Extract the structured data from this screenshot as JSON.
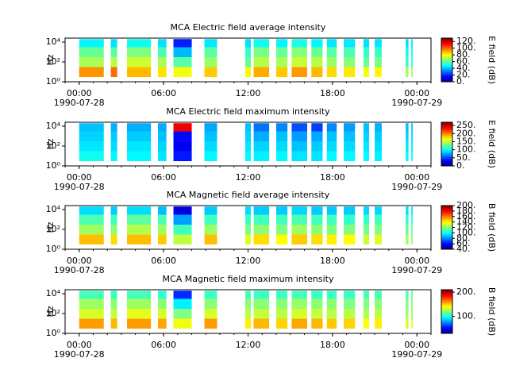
{
  "chart_data": [
    {
      "type": "spectrogram",
      "title": "MCA  Electric field average intensity",
      "ylabel": "Hz",
      "colorbar_label": "E field (dB)",
      "colormap": "jet",
      "yscale": "log",
      "xlim": [
        -1,
        25
      ],
      "xticks": [
        {
          "value": 0,
          "label": "00:00"
        },
        {
          "value": 6,
          "label": "06:00"
        },
        {
          "value": 12,
          "label": "12:00"
        },
        {
          "value": 18,
          "label": "18:00"
        },
        {
          "value": 24,
          "label": "00:00"
        }
      ],
      "xtick_dates": [
        {
          "value": 0,
          "label": "1990-07-28"
        },
        {
          "value": 24,
          "label": "1990-07-29"
        }
      ],
      "ylim": [
        1,
        25000
      ],
      "yticks": [
        {
          "value": 1,
          "label": "10⁰"
        },
        {
          "value": 100,
          "label": "10²"
        },
        {
          "value": 10000,
          "label": "10⁴"
        }
      ],
      "zlim": [
        0,
        130
      ],
      "zticks": [
        {
          "value": 0,
          "label": "0."
        },
        {
          "value": 20,
          "label": "20."
        },
        {
          "value": 40,
          "label": "40."
        },
        {
          "value": 60,
          "label": "60."
        },
        {
          "value": 80,
          "label": "80."
        },
        {
          "value": 100,
          "label": "100."
        },
        {
          "value": 120,
          "label": "120."
        }
      ],
      "y_edges": [
        3,
        30,
        300,
        3000,
        20000
      ],
      "x": [
        [
          0,
          1.75
        ],
        [
          2.25,
          2.7
        ],
        [
          3.4,
          5.1
        ],
        [
          5.6,
          6.2
        ],
        [
          6.7,
          8.0
        ],
        [
          8.9,
          9.8
        ],
        [
          11.8,
          12.2
        ],
        [
          12.4,
          13.5
        ],
        [
          14.0,
          14.8
        ],
        [
          15.1,
          16.2
        ],
        [
          16.5,
          17.3
        ],
        [
          17.6,
          18.3
        ],
        [
          18.8,
          19.6
        ],
        [
          20.2,
          20.6
        ],
        [
          21.0,
          21.5
        ],
        [
          23.2,
          23.4
        ],
        [
          23.6,
          23.7
        ]
      ],
      "values": [
        [
          95,
          70,
          62,
          48
        ],
        [
          100,
          72,
          60,
          45
        ],
        [
          90,
          75,
          65,
          50
        ],
        [
          85,
          70,
          58,
          45
        ],
        [
          80,
          60,
          40,
          20
        ],
        [
          88,
          68,
          60,
          46
        ],
        [
          82,
          62,
          55,
          45
        ],
        [
          92,
          72,
          64,
          50
        ],
        [
          88,
          70,
          62,
          48
        ],
        [
          94,
          74,
          66,
          52
        ],
        [
          90,
          72,
          62,
          48
        ],
        [
          86,
          68,
          60,
          46
        ],
        [
          84,
          66,
          58,
          46
        ],
        [
          80,
          62,
          55,
          45
        ],
        [
          82,
          64,
          56,
          46
        ],
        [
          70,
          55,
          50,
          45
        ],
        [
          68,
          55,
          50,
          45
        ]
      ]
    },
    {
      "type": "spectrogram",
      "title": "MCA  Electric field maximum intensity",
      "ylabel": "Hz",
      "colorbar_label": "E field (dB)",
      "colormap": "jet",
      "yscale": "log",
      "xlim": [
        -1,
        25
      ],
      "xticks": [
        {
          "value": 0,
          "label": "00:00"
        },
        {
          "value": 6,
          "label": "06:00"
        },
        {
          "value": 12,
          "label": "12:00"
        },
        {
          "value": 18,
          "label": "18:00"
        },
        {
          "value": 24,
          "label": "00:00"
        }
      ],
      "xtick_dates": [
        {
          "value": 0,
          "label": "1990-07-28"
        },
        {
          "value": 24,
          "label": "1990-07-29"
        }
      ],
      "ylim": [
        1,
        25000
      ],
      "yticks": [
        {
          "value": 1,
          "label": "10⁰"
        },
        {
          "value": 100,
          "label": "10²"
        },
        {
          "value": 10000,
          "label": "10⁴"
        }
      ],
      "zlim": [
        0,
        270
      ],
      "zticks": [
        {
          "value": 0,
          "label": "0."
        },
        {
          "value": 50,
          "label": "50."
        },
        {
          "value": 100,
          "label": "100."
        },
        {
          "value": 150,
          "label": "150."
        },
        {
          "value": 200,
          "label": "200."
        },
        {
          "value": 250,
          "label": "250."
        }
      ],
      "y_edges": [
        3,
        30,
        300,
        3000,
        20000
      ],
      "x": [
        [
          0,
          1.75
        ],
        [
          2.25,
          2.7
        ],
        [
          3.4,
          5.1
        ],
        [
          5.6,
          6.2
        ],
        [
          6.7,
          8.0
        ],
        [
          8.9,
          9.8
        ],
        [
          11.8,
          12.2
        ],
        [
          12.4,
          13.5
        ],
        [
          14.0,
          14.8
        ],
        [
          15.1,
          16.2
        ],
        [
          16.5,
          17.3
        ],
        [
          17.6,
          18.3
        ],
        [
          18.8,
          19.6
        ],
        [
          20.2,
          20.6
        ],
        [
          21.0,
          21.5
        ],
        [
          23.2,
          23.4
        ],
        [
          23.6,
          23.7
        ]
      ],
      "values": [
        [
          105,
          95,
          90,
          85
        ],
        [
          100,
          92,
          88,
          80
        ],
        [
          100,
          95,
          88,
          80
        ],
        [
          95,
          90,
          85,
          80
        ],
        [
          40,
          30,
          35,
          240
        ],
        [
          100,
          92,
          85,
          78
        ],
        [
          100,
          95,
          90,
          85
        ],
        [
          98,
          90,
          80,
          65
        ],
        [
          100,
          92,
          85,
          70
        ],
        [
          95,
          85,
          75,
          55
        ],
        [
          95,
          88,
          78,
          50
        ],
        [
          100,
          92,
          85,
          70
        ],
        [
          100,
          92,
          85,
          75
        ],
        [
          100,
          95,
          90,
          85
        ],
        [
          98,
          92,
          88,
          80
        ],
        [
          100,
          95,
          90,
          85
        ],
        [
          100,
          95,
          90,
          85
        ]
      ]
    },
    {
      "type": "spectrogram",
      "title": "MCA  Magnetic field average intensity",
      "ylabel": "Hz",
      "colorbar_label": "B field (dB)",
      "colormap": "jet",
      "yscale": "log",
      "xlim": [
        -1,
        25
      ],
      "xticks": [
        {
          "value": 0,
          "label": "00:00"
        },
        {
          "value": 6,
          "label": "06:00"
        },
        {
          "value": 12,
          "label": "12:00"
        },
        {
          "value": 18,
          "label": "18:00"
        },
        {
          "value": 24,
          "label": "00:00"
        }
      ],
      "xtick_dates": [
        {
          "value": 0,
          "label": "1990-07-28"
        },
        {
          "value": 24,
          "label": "1990-07-29"
        }
      ],
      "ylim": [
        1,
        25000
      ],
      "yticks": [
        {
          "value": 1,
          "label": "10⁰"
        },
        {
          "value": 100,
          "label": "10²"
        },
        {
          "value": 10000,
          "label": "10⁴"
        }
      ],
      "zlim": [
        40,
        200
      ],
      "zticks": [
        {
          "value": 40,
          "label": "40."
        },
        {
          "value": 60,
          "label": "60."
        },
        {
          "value": 80,
          "label": "80."
        },
        {
          "value": 100,
          "label": "100."
        },
        {
          "value": 120,
          "label": "120."
        },
        {
          "value": 140,
          "label": "140."
        },
        {
          "value": 160,
          "label": "160."
        },
        {
          "value": 180,
          "label": "180."
        },
        {
          "value": 200,
          "label": "200."
        }
      ],
      "y_edges": [
        3,
        30,
        300,
        3000,
        20000
      ],
      "x": [
        [
          0,
          1.75
        ],
        [
          2.25,
          2.7
        ],
        [
          3.4,
          5.1
        ],
        [
          5.6,
          6.2
        ],
        [
          6.7,
          8.0
        ],
        [
          8.9,
          9.8
        ],
        [
          11.8,
          12.2
        ],
        [
          12.4,
          13.5
        ],
        [
          14.0,
          14.8
        ],
        [
          15.1,
          16.2
        ],
        [
          16.5,
          17.3
        ],
        [
          17.6,
          18.3
        ],
        [
          18.8,
          19.6
        ],
        [
          20.2,
          20.6
        ],
        [
          21.0,
          21.5
        ],
        [
          23.2,
          23.4
        ],
        [
          23.6,
          23.7
        ]
      ],
      "values": [
        [
          150,
          125,
          112,
          95
        ],
        [
          145,
          122,
          110,
          92
        ],
        [
          150,
          128,
          115,
          95
        ],
        [
          148,
          125,
          112,
          90
        ],
        [
          130,
          110,
          85,
          55
        ],
        [
          150,
          125,
          110,
          92
        ],
        [
          135,
          120,
          110,
          95
        ],
        [
          145,
          122,
          110,
          92
        ],
        [
          140,
          120,
          110,
          92
        ],
        [
          148,
          125,
          112,
          94
        ],
        [
          145,
          122,
          110,
          92
        ],
        [
          142,
          120,
          110,
          92
        ],
        [
          140,
          120,
          108,
          92
        ],
        [
          132,
          118,
          108,
          94
        ],
        [
          135,
          120,
          110,
          94
        ],
        [
          125,
          115,
          108,
          96
        ],
        [
          125,
          115,
          108,
          96
        ]
      ]
    },
    {
      "type": "spectrogram",
      "title": "MCA  Magnetic field maximum intensity",
      "ylabel": "Hz",
      "colorbar_label": "B field (dB)",
      "colormap": "jet",
      "yscale": "log",
      "xlim": [
        -1,
        25
      ],
      "xticks": [
        {
          "value": 0,
          "label": "00:00"
        },
        {
          "value": 6,
          "label": "06:00"
        },
        {
          "value": 12,
          "label": "12:00"
        },
        {
          "value": 18,
          "label": "18:00"
        },
        {
          "value": 24,
          "label": "00:00"
        }
      ],
      "xtick_dates": [
        {
          "value": 0,
          "label": "1990-07-28"
        },
        {
          "value": 24,
          "label": "1990-07-29"
        }
      ],
      "ylim": [
        1,
        25000
      ],
      "yticks": [
        {
          "value": 1,
          "label": "10⁰"
        },
        {
          "value": 100,
          "label": "10²"
        },
        {
          "value": 10000,
          "label": "10⁴"
        }
      ],
      "zlim": [
        30,
        210
      ],
      "zticks": [
        {
          "value": 100,
          "label": "100."
        },
        {
          "value": 200,
          "label": "200."
        }
      ],
      "y_edges": [
        3,
        30,
        300,
        3000,
        20000
      ],
      "x": [
        [
          0,
          1.75
        ],
        [
          2.25,
          2.7
        ],
        [
          3.4,
          5.1
        ],
        [
          5.6,
          6.2
        ],
        [
          6.7,
          8.0
        ],
        [
          8.9,
          9.8
        ],
        [
          11.8,
          12.2
        ],
        [
          12.4,
          13.5
        ],
        [
          14.0,
          14.8
        ],
        [
          15.1,
          16.2
        ],
        [
          16.5,
          17.3
        ],
        [
          17.6,
          18.3
        ],
        [
          18.8,
          19.6
        ],
        [
          20.2,
          20.6
        ],
        [
          21.0,
          21.5
        ],
        [
          23.2,
          23.4
        ],
        [
          23.6,
          23.7
        ]
      ],
      "values": [
        [
          160,
          135,
          125,
          110
        ],
        [
          155,
          132,
          122,
          108
        ],
        [
          160,
          138,
          125,
          110
        ],
        [
          158,
          135,
          122,
          106
        ],
        [
          140,
          120,
          95,
          60
        ],
        [
          160,
          135,
          122,
          108
        ],
        [
          145,
          130,
          122,
          110
        ],
        [
          155,
          132,
          122,
          108
        ],
        [
          150,
          130,
          122,
          108
        ],
        [
          158,
          135,
          124,
          110
        ],
        [
          155,
          132,
          122,
          108
        ],
        [
          152,
          130,
          122,
          108
        ],
        [
          150,
          130,
          120,
          108
        ],
        [
          142,
          128,
          120,
          110
        ],
        [
          145,
          130,
          122,
          110
        ],
        [
          135,
          125,
          120,
          112
        ],
        [
          135,
          125,
          120,
          112
        ]
      ]
    }
  ]
}
